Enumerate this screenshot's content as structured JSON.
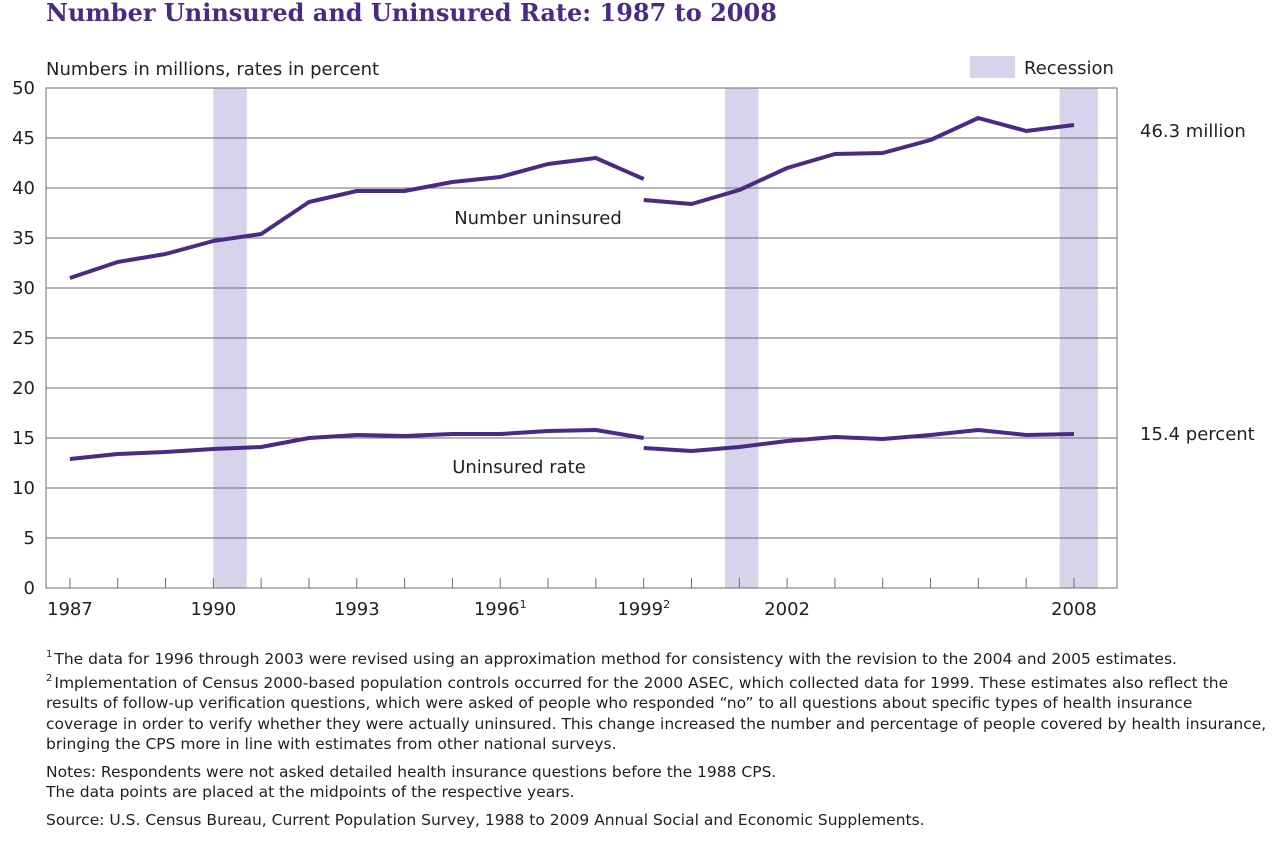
{
  "chart_data": {
    "type": "line",
    "title": "Number Uninsured and Uninsured Rate: 1987 to 2008",
    "ylabel": "Numbers in millions, rates in percent",
    "ylim": [
      0,
      50
    ],
    "y_ticks": [
      0,
      5,
      10,
      15,
      20,
      25,
      30,
      35,
      40,
      45,
      50
    ],
    "xlim": [
      1986.5,
      2008.9
    ],
    "x_ticks": [
      {
        "year": 1987,
        "label": "1987",
        "sup": ""
      },
      {
        "year": 1990,
        "label": "1990",
        "sup": ""
      },
      {
        "year": 1993,
        "label": "1993",
        "sup": ""
      },
      {
        "year": 1996,
        "label": "1996",
        "sup": "1"
      },
      {
        "year": 1999,
        "label": "1999",
        "sup": "2"
      },
      {
        "year": 2002,
        "label": "2002",
        "sup": ""
      },
      {
        "year": 2008,
        "label": "2008",
        "sup": ""
      }
    ],
    "x_minor_ticks": [
      1987,
      1988,
      1989,
      1990,
      1991,
      1992,
      1993,
      1994,
      1995,
      1996,
      1997,
      1998,
      1999,
      2000,
      2001,
      2002,
      2003,
      2004,
      2005,
      2006,
      2007,
      2008
    ],
    "grid": true,
    "recessions": [
      {
        "start": 1990.0,
        "end": 1990.7
      },
      {
        "start": 2000.7,
        "end": 2001.4
      },
      {
        "start": 2007.7,
        "end": 2008.5
      }
    ],
    "legend": {
      "label": "Recession",
      "position": "top-right"
    },
    "series": [
      {
        "name": "Number uninsured",
        "end_label": "46.3 million",
        "segments": [
          {
            "x": [
              1987,
              1988,
              1989,
              1990,
              1991,
              1992,
              1993,
              1994,
              1995,
              1996,
              1997,
              1998,
              1999
            ],
            "y": [
              31.0,
              32.6,
              33.4,
              34.7,
              35.4,
              38.6,
              39.7,
              39.7,
              40.6,
              41.1,
              42.4,
              43.0,
              40.9
            ]
          },
          {
            "x": [
              1999,
              2000,
              2001,
              2002,
              2003,
              2004,
              2005,
              2006,
              2007,
              2008
            ],
            "y": [
              38.8,
              38.4,
              39.8,
              42.0,
              43.4,
              43.5,
              44.8,
              47.0,
              45.7,
              46.3
            ]
          }
        ]
      },
      {
        "name": "Uninsured rate",
        "end_label": "15.4 percent",
        "segments": [
          {
            "x": [
              1987,
              1988,
              1989,
              1990,
              1991,
              1992,
              1993,
              1994,
              1995,
              1996,
              1997,
              1998,
              1999
            ],
            "y": [
              12.9,
              13.4,
              13.6,
              13.9,
              14.1,
              15.0,
              15.3,
              15.2,
              15.4,
              15.4,
              15.7,
              15.8,
              15.0
            ]
          },
          {
            "x": [
              1999,
              2000,
              2001,
              2002,
              2003,
              2004,
              2005,
              2006,
              2007,
              2008
            ],
            "y": [
              14.0,
              13.7,
              14.1,
              14.7,
              15.1,
              14.9,
              15.3,
              15.8,
              15.3,
              15.4
            ]
          }
        ]
      }
    ],
    "colors": {
      "line": "#4b2a86",
      "recession": "#d7d3ea",
      "grid": "#6d6e71",
      "title": "#4b2a86"
    }
  },
  "notes": {
    "footnote1_mark": "1",
    "footnote1": "The data for 1996 through 2003 were revised using an approximation method for consistency with the revision to the 2004 and 2005 estimates.",
    "footnote2_mark": "2",
    "footnote2": "Implementation of Census 2000-based population controls occurred for the 2000 ASEC, which collected data for 1999.  These estimates also reflect the results of follow-up verification questions, which were asked of people who responded “no” to all questions about specific types of health insurance coverage in order to verify whether they were actually uninsured.  This change increased the number and percentage of people covered by health insurance, bringing the CPS more in line with estimates from other national surveys.",
    "notes_line1": "Notes: Respondents were not asked detailed health insurance questions before the 1988 CPS.",
    "notes_line2": "The data points are placed at the midpoints of the respective years.",
    "source": "Source: U.S. Census Bureau, Current Population Survey, 1988 to 2009 Annual Social and Economic Supplements."
  }
}
